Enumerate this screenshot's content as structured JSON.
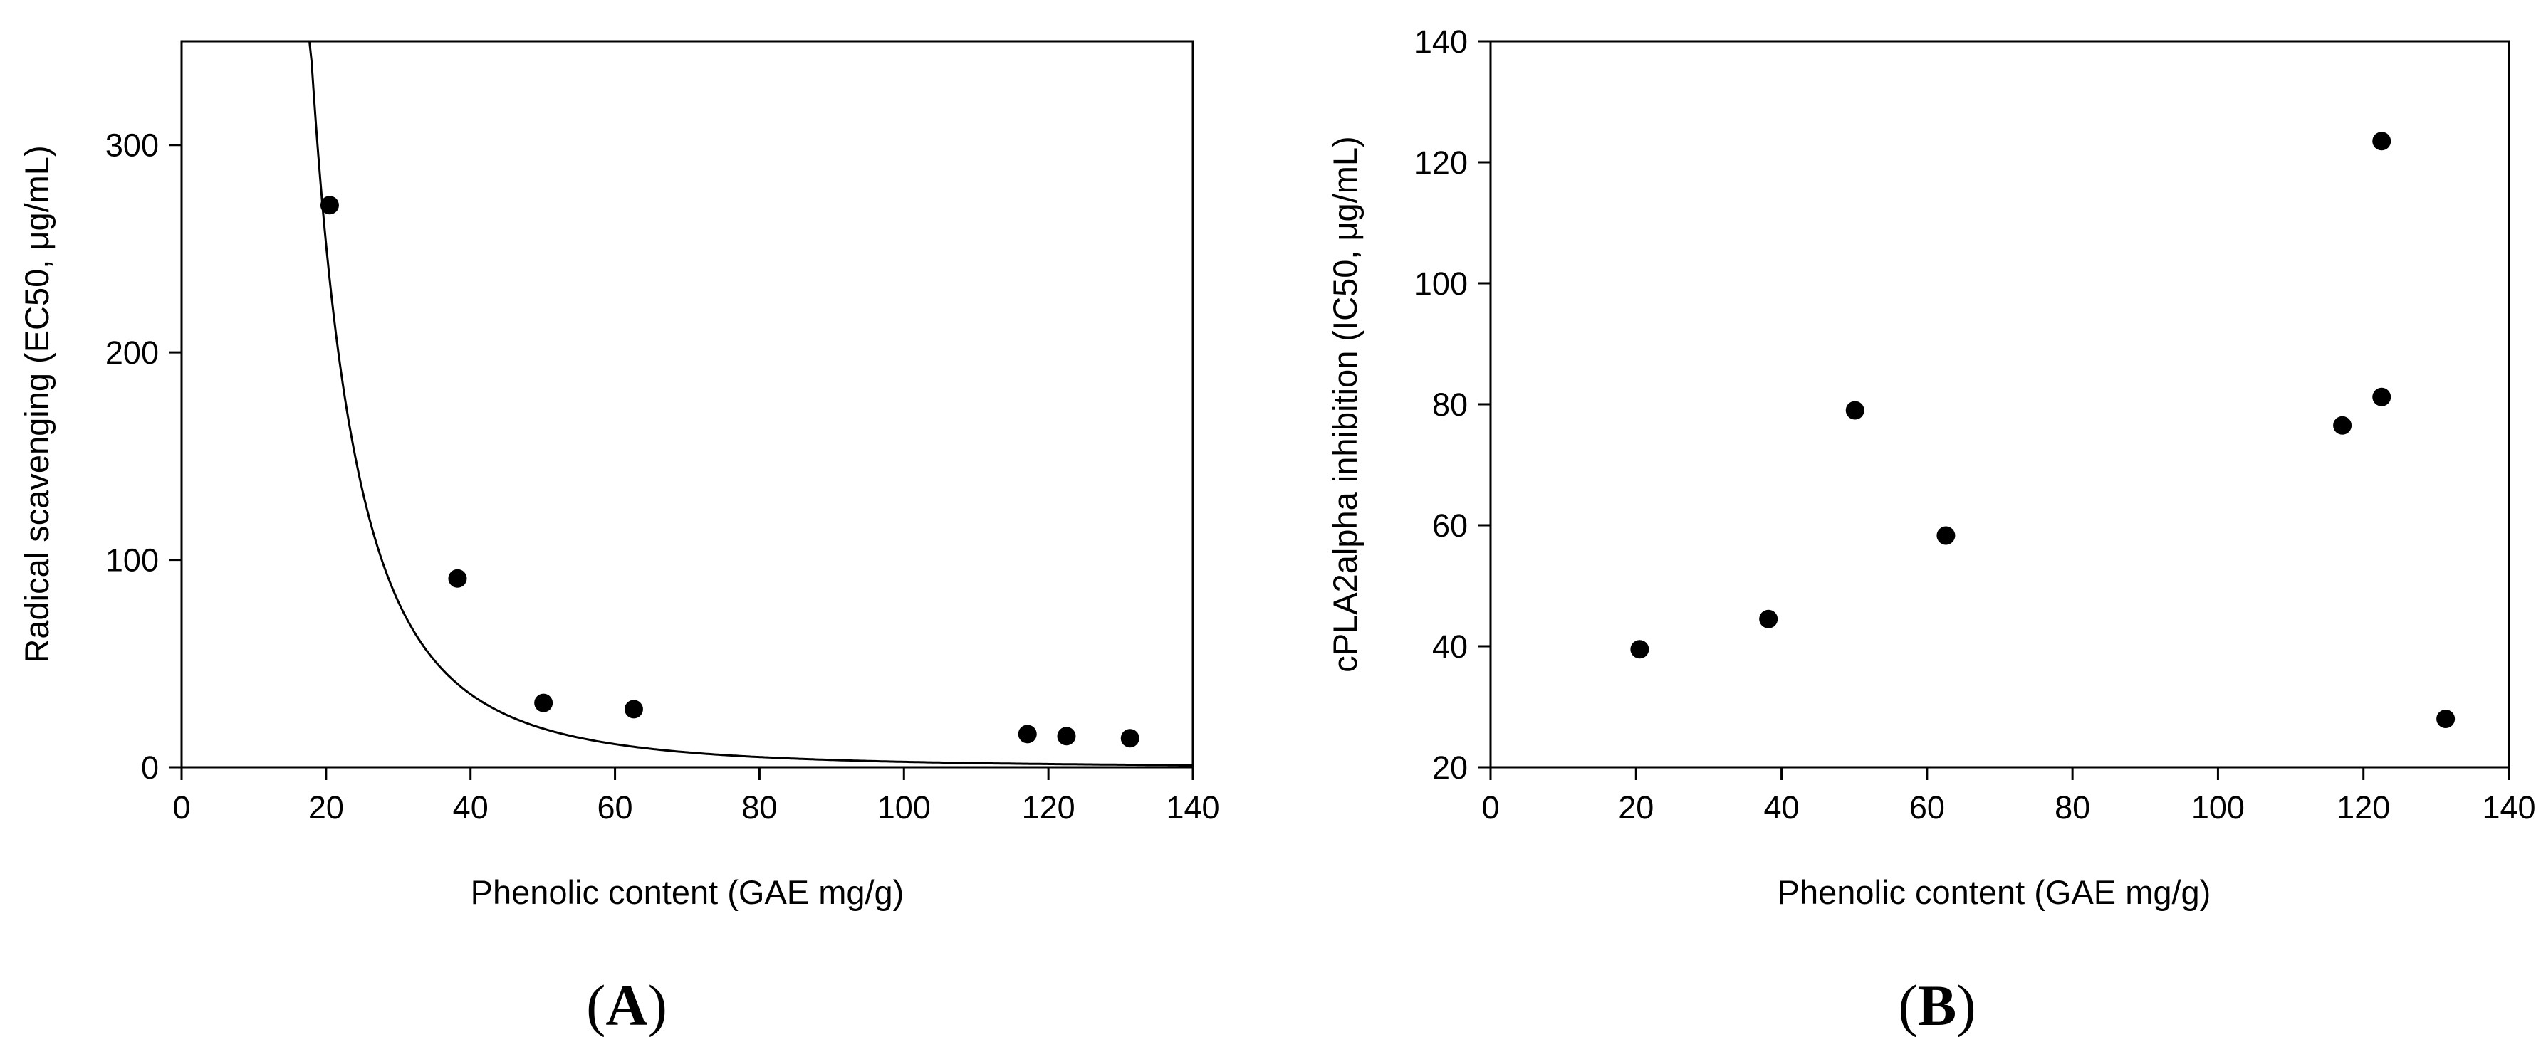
{
  "chart_data": [
    {
      "id": "A",
      "type": "scatter",
      "panel_label_open": "(",
      "panel_label_letter": "A",
      "panel_label_close": ")",
      "xlabel": "Phenolic content (GAE mg/g)",
      "ylabel": "Radical scavenging (EC50, μg/mL)",
      "xlim": [
        0,
        140
      ],
      "ylim": [
        0,
        350
      ],
      "xticks": [
        0,
        20,
        40,
        60,
        80,
        100,
        120,
        140
      ],
      "yticks": [
        0,
        100,
        200,
        300
      ],
      "grid": false,
      "points": [
        {
          "x": 20.5,
          "y": 271
        },
        {
          "x": 38.2,
          "y": 91
        },
        {
          "x": 50.1,
          "y": 31
        },
        {
          "x": 62.6,
          "y": 28
        },
        {
          "x": 117.1,
          "y": 16
        },
        {
          "x": 122.5,
          "y": 15
        },
        {
          "x": 131.3,
          "y": 14
        }
      ],
      "fit_curve": {
        "type": "power",
        "description": "y = a * x^b",
        "a": 1250000,
        "b": -2.84,
        "x_start": 17.7,
        "x_end": 140
      }
    },
    {
      "id": "B",
      "type": "scatter",
      "panel_label_open": "(",
      "panel_label_letter": "B",
      "panel_label_close": ")",
      "xlabel": "Phenolic content (GAE mg/g)",
      "ylabel": "cPLA2alpha inhibition (IC50, μg/mL)",
      "xlim": [
        0,
        140
      ],
      "ylim": [
        20,
        140
      ],
      "xticks": [
        0,
        20,
        40,
        60,
        80,
        100,
        120,
        140
      ],
      "yticks": [
        20,
        40,
        60,
        80,
        100,
        120,
        140
      ],
      "grid": false,
      "points": [
        {
          "x": 20.5,
          "y": 39.5
        },
        {
          "x": 38.2,
          "y": 44.5
        },
        {
          "x": 50.1,
          "y": 79
        },
        {
          "x": 62.6,
          "y": 58.3
        },
        {
          "x": 117.1,
          "y": 76.5
        },
        {
          "x": 122.5,
          "y": 123.5
        },
        {
          "x": 122.5,
          "y": 81.2
        },
        {
          "x": 131.3,
          "y": 28
        }
      ]
    }
  ]
}
